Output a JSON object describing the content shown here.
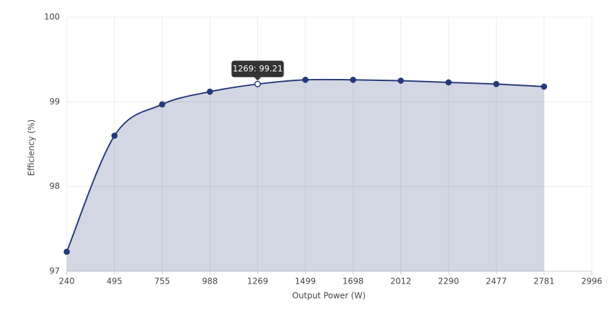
{
  "chart_data": {
    "type": "area",
    "x_label": "Output Power (W)",
    "y_label": "Efficiency (%)",
    "categories": [
      "240",
      "495",
      "755",
      "988",
      "1269",
      "1499",
      "1698",
      "2012",
      "2290",
      "2477",
      "2781",
      "2996"
    ],
    "series": [
      {
        "name": "Efficiency",
        "color": "#25397a",
        "values": [
          97.23,
          98.6,
          98.97,
          99.12,
          99.21,
          99.26,
          99.26,
          99.25,
          99.23,
          99.21,
          99.18,
          null
        ]
      }
    ],
    "ylim": [
      97,
      100
    ],
    "yticks": [
      97,
      98,
      99,
      100
    ],
    "grid": true,
    "tooltip": "1269: 99.21",
    "tooltip_index": 4
  }
}
